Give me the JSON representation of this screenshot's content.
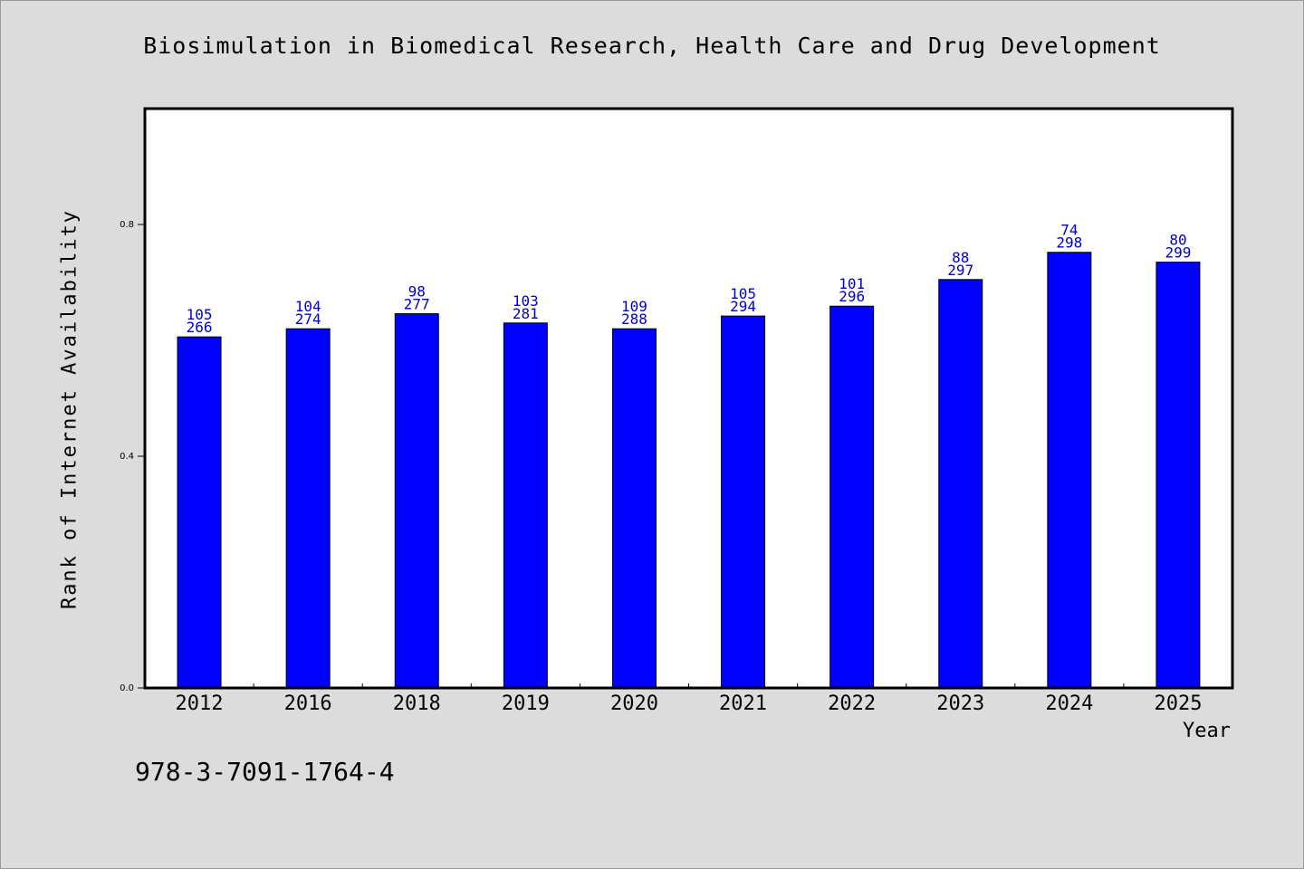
{
  "page": {
    "title": "Biosimulation in Biomedical Research, Health Care and Drug Development",
    "isbn": "978-3-7091-1764-4"
  },
  "colors": {
    "background": "#dcdcdc",
    "plot_background": "#ffffff",
    "bar_fill": "#0000ff",
    "label_color": "#0000cc",
    "axis_color": "#000000"
  },
  "chart_data": {
    "type": "bar",
    "title": "Biosimulation in Biomedical Research, Health Care and Drug Development",
    "xlabel": "Year",
    "ylabel": "Rank of Internet Availability",
    "categories": [
      "2012",
      "2016",
      "2018",
      "2019",
      "2020",
      "2021",
      "2022",
      "2023",
      "2024",
      "2025"
    ],
    "values": [
      0.606,
      0.62,
      0.646,
      0.63,
      0.62,
      0.642,
      0.659,
      0.705,
      0.752,
      0.735
    ],
    "label_top": [
      "105",
      "104",
      "98",
      "103",
      "109",
      "105",
      "101",
      "88",
      "74",
      "80"
    ],
    "label_bottom": [
      "266",
      "274",
      "277",
      "281",
      "288",
      "294",
      "296",
      "297",
      "298",
      "299"
    ],
    "ylim": [
      0,
      1.0
    ],
    "yticks": [
      0.0,
      0.4,
      0.8
    ],
    "ytick_labels": [
      "0.0",
      "0.4",
      "0.8"
    ],
    "grid": false,
    "legend": "none"
  }
}
